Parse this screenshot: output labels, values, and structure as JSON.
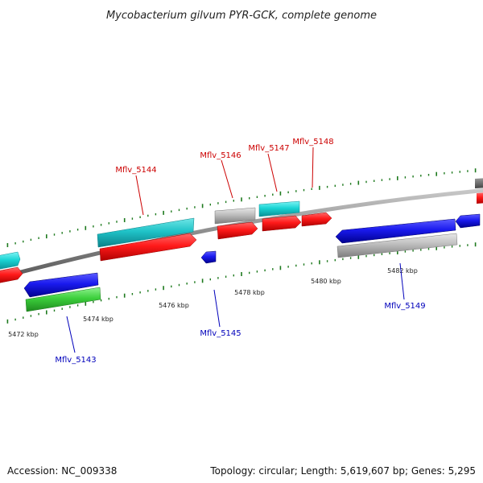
{
  "title": "Mycobacterium gilvum PYR-GCK, complete genome",
  "footer": {
    "accession": "Accession: NC_009338",
    "topology": "Topology: circular; Length: 5,619,607 bp; Genes: 5,295"
  },
  "colors": {
    "strand_forward_label": "#cc0000",
    "strand_reverse_label": "#0000bb",
    "backbone": "#8c8c8c",
    "tick": "#1e7a1e"
  },
  "scale_labels": [
    "5472 kbp",
    "5474 kbp",
    "5476 kbp",
    "5478 kbp",
    "5480 kbp",
    "5482 kbp"
  ],
  "gene_labels": [
    {
      "id": "g5144",
      "text": "Mflv_5144",
      "strand": "forward"
    },
    {
      "id": "g5146",
      "text": "Mflv_5146",
      "strand": "forward"
    },
    {
      "id": "g5147",
      "text": "Mflv_5147",
      "strand": "forward"
    },
    {
      "id": "g5148",
      "text": "Mflv_5148",
      "strand": "forward"
    },
    {
      "id": "g5145",
      "text": "Mflv_5145",
      "strand": "reverse"
    },
    {
      "id": "g5143",
      "text": "Mflv_5143",
      "strand": "reverse"
    },
    {
      "id": "g5149",
      "text": "Mflv_5149",
      "strand": "reverse"
    }
  ]
}
